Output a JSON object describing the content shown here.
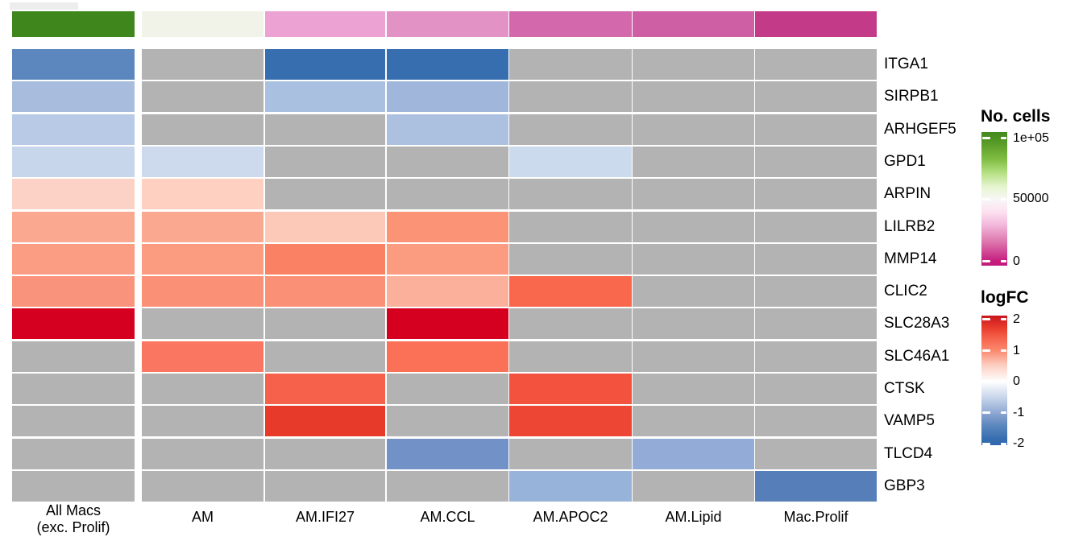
{
  "chart_data": {
    "type": "heatmap",
    "title": "",
    "columns": [
      "All Macs\n(exc. Prolif)",
      "AM",
      "AM.IFI27",
      "AM.CCL",
      "AM.APOC2",
      "AM.Lipid",
      "Mac.Prolif"
    ],
    "rows": [
      "ITGA1",
      "SIRPB1",
      "ARHGEF5",
      "GPD1",
      "ARPIN",
      "LILRB2",
      "MMP14",
      "CLIC2",
      "SLC28A3",
      "SLC46A1",
      "CTSK",
      "VAMP5",
      "TLCD4",
      "GBP3"
    ],
    "value_name": "logFC",
    "na_color": "#b3b3b3",
    "cell_colors": [
      [
        "#5b87be",
        null,
        "#376eb0",
        "#376eb0",
        null,
        null,
        null
      ],
      [
        "#a8bcdd",
        null,
        "#a9c0e1",
        "#a0b7db",
        null,
        null,
        null
      ],
      [
        "#b8cae5",
        null,
        null,
        "#acc1e0",
        null,
        null,
        null
      ],
      [
        "#c8d6eb",
        "#cdd9ed",
        null,
        null,
        "#ccdaee",
        null,
        null
      ],
      [
        "#fcd2c6",
        "#fdd0c2",
        null,
        null,
        null,
        null,
        null
      ],
      [
        "#fba890",
        "#fba890",
        "#fcc9b8",
        "#fb9477",
        null,
        null,
        null
      ],
      [
        "#fb9d83",
        "#fb9b7f",
        "#fa8164",
        "#fb9c81",
        null,
        null,
        null
      ],
      [
        "#fa937b",
        "#fa9076",
        "#fa9076",
        "#fbb09b",
        "#f9684d",
        null,
        null
      ],
      [
        "#d50020",
        null,
        null,
        "#d50020",
        null,
        null,
        null
      ],
      [
        null,
        "#fa7660",
        null,
        "#fa7157",
        null,
        null,
        null
      ],
      [
        null,
        null,
        "#f5614b",
        null,
        "#f3523f",
        null,
        null
      ],
      [
        null,
        null,
        "#e73a2b",
        null,
        "#ee4634",
        null,
        null
      ],
      [
        null,
        null,
        null,
        "#7292c7",
        null,
        "#93acd7",
        null
      ],
      [
        null,
        null,
        null,
        null,
        "#97b3d9",
        null,
        "#567fba"
      ]
    ],
    "logfc_estimated": [
      [
        -1.45,
        null,
        -1.9,
        -1.9,
        null,
        null,
        null
      ],
      [
        -0.85,
        null,
        -0.8,
        -0.9,
        null,
        null,
        null
      ],
      [
        -0.65,
        null,
        null,
        -0.75,
        null,
        null,
        null
      ],
      [
        -0.5,
        -0.48,
        null,
        null,
        -0.48,
        null,
        null
      ],
      [
        0.45,
        0.47,
        null,
        null,
        null,
        null,
        null
      ],
      [
        0.85,
        0.85,
        0.55,
        1.0,
        null,
        null,
        null
      ],
      [
        0.95,
        0.97,
        1.15,
        0.95,
        null,
        null,
        null
      ],
      [
        1.0,
        1.05,
        1.05,
        0.8,
        1.35,
        null,
        null
      ],
      [
        2.1,
        null,
        null,
        2.1,
        null,
        null,
        null
      ],
      [
        null,
        1.25,
        null,
        1.3,
        null,
        null,
        null
      ],
      [
        null,
        null,
        1.4,
        null,
        1.5,
        null,
        null
      ],
      [
        null,
        null,
        1.75,
        null,
        1.6,
        null,
        null
      ],
      [
        null,
        null,
        null,
        -1.2,
        null,
        -1.0,
        null
      ],
      [
        null,
        null,
        null,
        null,
        -0.95,
        null,
        -1.5
      ]
    ],
    "column_annotation": {
      "name": "No. cells",
      "colors": [
        "#3f861c",
        "#f1f3e9",
        "#eca3d4",
        "#e392c5",
        "#d369ac",
        "#cf5fa5",
        "#c33b88"
      ]
    },
    "legends": [
      {
        "title": "No. cells",
        "ticks": [
          {
            "label": "1e+05",
            "pos": 0.048
          },
          {
            "label": "50000",
            "pos": 0.503
          },
          {
            "label": "0",
            "pos": 0.968
          }
        ],
        "gradient": [
          [
            0,
            "#44891d"
          ],
          [
            0.05,
            "#4d9221"
          ],
          [
            0.2,
            "#7fbc41"
          ],
          [
            0.31,
            "#b8e186"
          ],
          [
            0.41,
            "#e6f5d0"
          ],
          [
            0.503,
            "#f7f7f7"
          ],
          [
            0.6,
            "#fde0ef"
          ],
          [
            0.7,
            "#f1b6da"
          ],
          [
            0.82,
            "#de77ae"
          ],
          [
            0.97,
            "#c51b7d"
          ],
          [
            1,
            "#c11a7c"
          ]
        ]
      },
      {
        "title": "logFC",
        "ticks": [
          {
            "label": "2",
            "pos": 0.031
          },
          {
            "label": "1",
            "pos": 0.273
          },
          {
            "label": "0",
            "pos": 0.509
          },
          {
            "label": "-1",
            "pos": 0.751
          },
          {
            "label": "-2",
            "pos": 0.988
          }
        ],
        "gradient": [
          [
            0,
            "#c9151e"
          ],
          [
            0.09,
            "#e73a2b"
          ],
          [
            0.17,
            "#f5614b"
          ],
          [
            0.27,
            "#fa8a6e"
          ],
          [
            0.38,
            "#fccdc0"
          ],
          [
            0.509,
            "#ffffff"
          ],
          [
            0.63,
            "#c9d6eb"
          ],
          [
            0.7,
            "#a8bcdd"
          ],
          [
            0.78,
            "#7e9ccb"
          ],
          [
            0.85,
            "#5b87be"
          ],
          [
            0.95,
            "#376eb0"
          ],
          [
            1,
            "#2e67ab"
          ]
        ]
      }
    ],
    "layout_hints": {
      "legend_position": "right",
      "grid": "off",
      "misc_top_left_strip_color": "#ededed"
    }
  }
}
